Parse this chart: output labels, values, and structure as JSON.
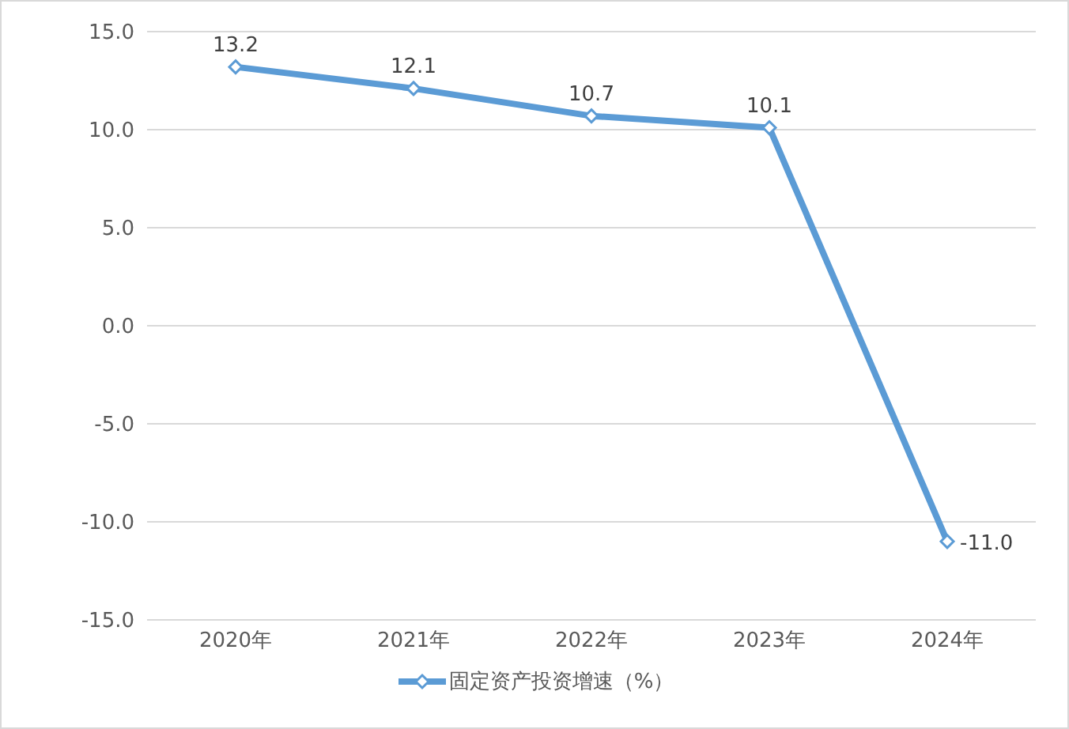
{
  "chart_data": {
    "type": "line",
    "categories": [
      "2020年",
      "2021年",
      "2022年",
      "2023年",
      "2024年"
    ],
    "series": [
      {
        "name": "固定资产投资增速（%）",
        "color": "#5b9bd5",
        "values": [
          13.2,
          12.1,
          10.7,
          10.1,
          -11
        ],
        "value_labels": [
          "13.2",
          "12.1",
          "10.7",
          "10.1",
          "-11.0"
        ]
      }
    ],
    "ylim": [
      -15,
      15
    ],
    "yticks": [
      {
        "value": -15,
        "label": "-15.0"
      },
      {
        "value": -10,
        "label": "-10.0"
      },
      {
        "value": -5,
        "label": "-5.0"
      },
      {
        "value": 0,
        "label": "0.0"
      },
      {
        "value": 5,
        "label": "5.0"
      },
      {
        "value": 10,
        "label": "10.0"
      },
      {
        "value": 15,
        "label": "15.0"
      }
    ],
    "grid": "y",
    "legend": "bottom",
    "marker": "diamond",
    "line_style": "solid"
  }
}
